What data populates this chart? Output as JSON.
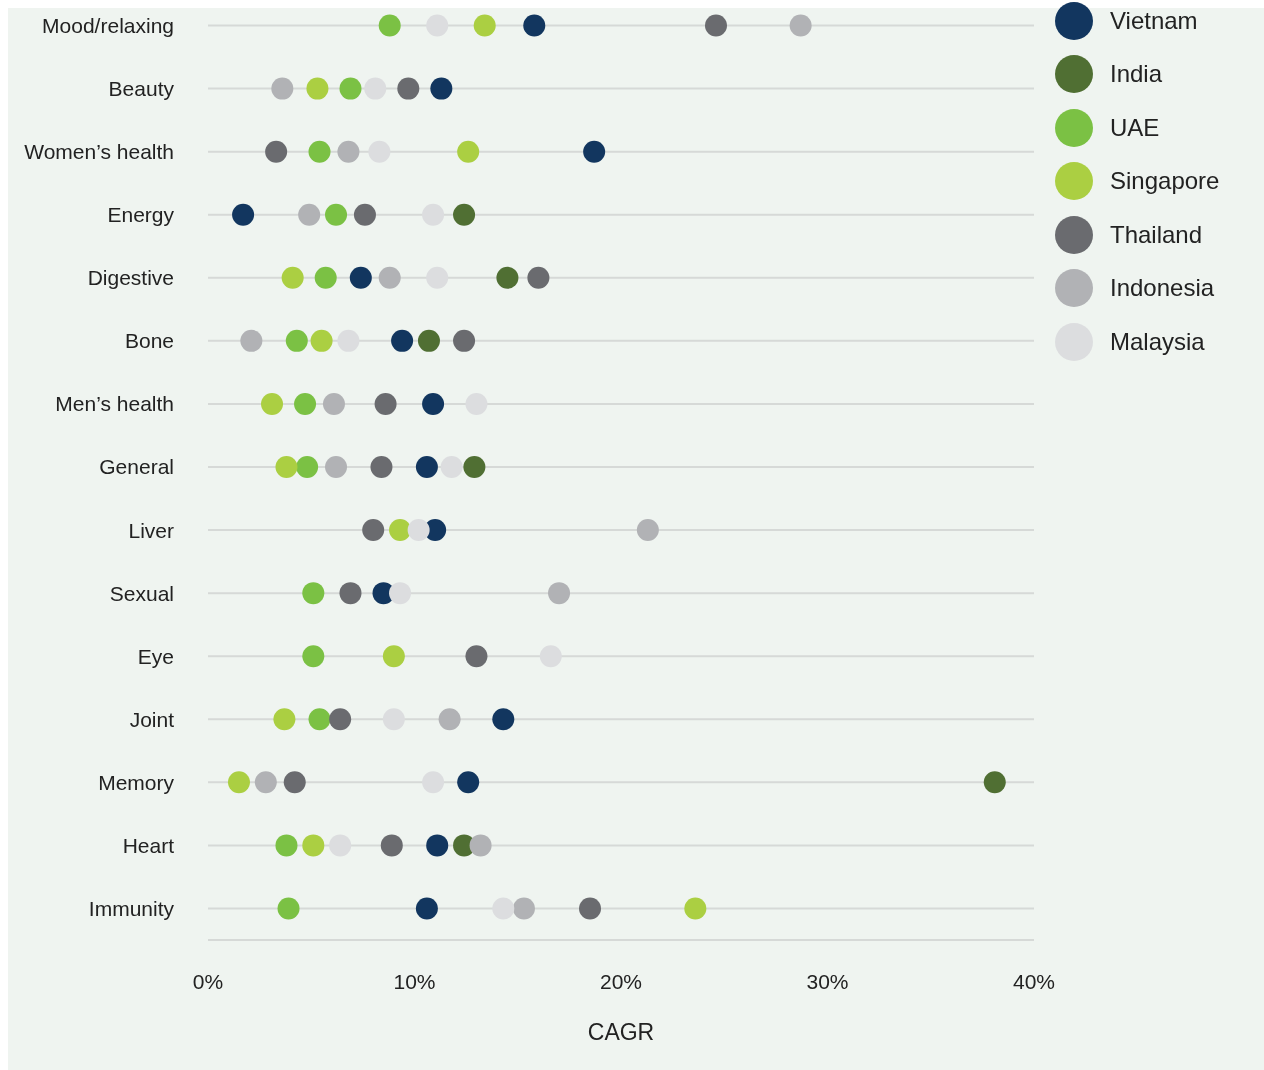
{
  "chart_data": {
    "type": "scatter",
    "orientation": "horizontal",
    "xlabel": "CAGR",
    "categories": [
      "Mood/relaxing",
      "Beauty",
      "Women’s health",
      "Energy",
      "Digestive",
      "Bone",
      "Men’s health",
      "General",
      "Liver",
      "Sexual",
      "Eye",
      "Joint",
      "Memory",
      "Heart",
      "Immunity"
    ],
    "xlim": [
      0,
      40
    ],
    "xticks": [
      {
        "value": 0,
        "label": "0%"
      },
      {
        "value": 10,
        "label": "10%"
      },
      {
        "value": 20,
        "label": "20%"
      },
      {
        "value": 30,
        "label": "30%"
      },
      {
        "value": 40,
        "label": "40%"
      }
    ],
    "grid": "y",
    "legend": "top right",
    "marker": "circle",
    "series": [
      {
        "name": "Vietnam",
        "color": "#12365f",
        "values": [
          15.8,
          11.3,
          18.7,
          1.7,
          7.4,
          9.4,
          10.9,
          10.6,
          11.0,
          8.5,
          null,
          14.3,
          12.6,
          11.1,
          10.6
        ]
      },
      {
        "name": "India",
        "color": "#506f33",
        "values": [
          null,
          null,
          null,
          12.4,
          14.5,
          10.7,
          null,
          12.9,
          null,
          null,
          null,
          null,
          38.1,
          12.4,
          null
        ]
      },
      {
        "name": "UAE",
        "color": "#7bc144",
        "values": [
          8.8,
          6.9,
          5.4,
          6.2,
          5.7,
          4.3,
          4.7,
          4.8,
          null,
          5.1,
          5.1,
          5.4,
          null,
          3.8,
          3.9
        ]
      },
      {
        "name": "Singapore",
        "color": "#abcf42",
        "values": [
          13.4,
          5.3,
          12.6,
          null,
          4.1,
          5.5,
          3.1,
          3.8,
          9.3,
          null,
          9.0,
          3.7,
          1.5,
          5.1,
          23.6
        ]
      },
      {
        "name": "Thailand",
        "color": "#6a6b6f",
        "values": [
          24.6,
          9.7,
          3.3,
          7.6,
          16.0,
          12.4,
          8.6,
          8.4,
          8.0,
          6.9,
          13.0,
          6.4,
          4.2,
          8.9,
          18.5
        ]
      },
      {
        "name": "Indonesia",
        "color": "#b1b2b5",
        "values": [
          28.7,
          3.6,
          6.8,
          4.9,
          8.8,
          2.1,
          6.1,
          6.2,
          21.3,
          17.0,
          null,
          11.7,
          2.8,
          13.2,
          15.3
        ]
      },
      {
        "name": "Malaysia",
        "color": "#dcdddf",
        "values": [
          11.1,
          8.1,
          8.3,
          10.9,
          11.1,
          6.8,
          13.0,
          11.8,
          10.2,
          9.3,
          16.6,
          9.0,
          10.9,
          6.4,
          14.3
        ]
      }
    ]
  }
}
